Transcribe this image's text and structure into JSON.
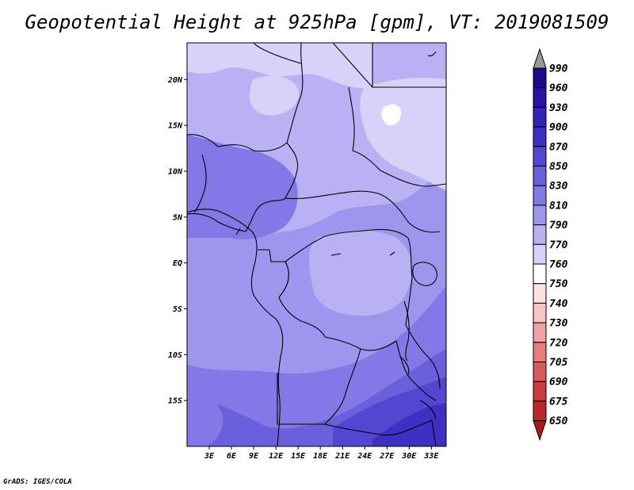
{
  "title": "Geopotential Height at 925hPa [gpm], VT: 2019081509",
  "credit": "GrADS: IGES/COLA",
  "map": {
    "region": "Central Africa",
    "lon_range": [
      0,
      35
    ],
    "lat_range": [
      -20,
      24
    ],
    "x_ticks": [
      "3E",
      "6E",
      "9E",
      "12E",
      "15E",
      "18E",
      "21E",
      "24E",
      "27E",
      "30E",
      "33E"
    ],
    "y_ticks": [
      "20N",
      "15N",
      "10N",
      "5N",
      "EQ",
      "5S",
      "10S",
      "15S"
    ]
  },
  "colorbar": {
    "labels": [
      "990",
      "960",
      "930",
      "900",
      "870",
      "850",
      "830",
      "810",
      "790",
      "770",
      "760",
      "750",
      "740",
      "730",
      "720",
      "705",
      "690",
      "675",
      "650"
    ],
    "colors": [
      "#1a0a8c",
      "#2814a0",
      "#3322b4",
      "#3e30c4",
      "#5246d2",
      "#6a60dc",
      "#8378e6",
      "#9e96ee",
      "#b8b2f4",
      "#d6d2fa",
      "#ffffff",
      "#fde0e0",
      "#f8c4c4",
      "#f0a2a2",
      "#e67e7e",
      "#da5a5a",
      "#cc3c3c",
      "#bc2828",
      "#a81a1a"
    ],
    "top_arrow_color": "#999999",
    "bottom_arrow_color": "#a81a1a"
  }
}
